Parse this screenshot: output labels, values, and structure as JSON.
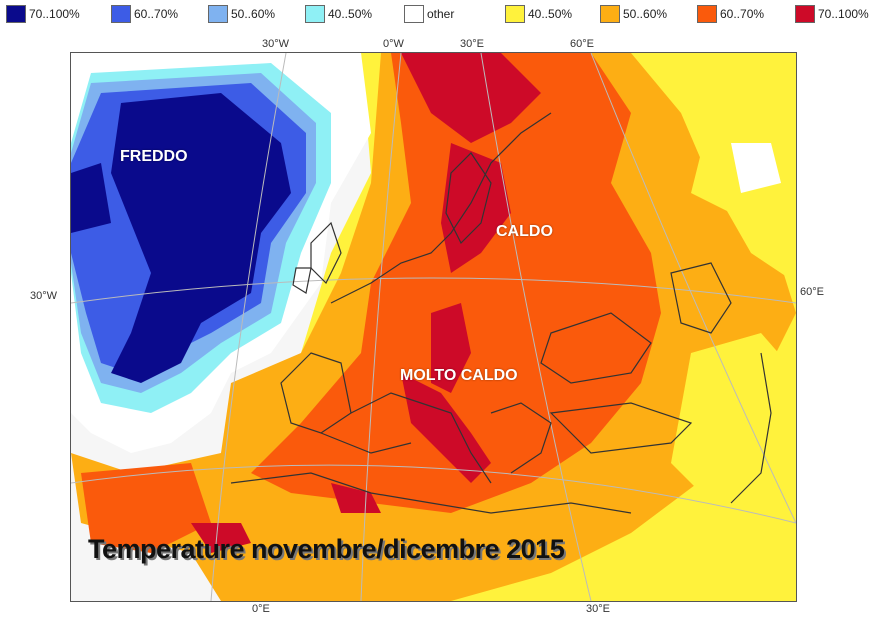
{
  "legend": {
    "items": [
      {
        "label": "70..100%",
        "color": "#0a0a8c"
      },
      {
        "label": "60..70%",
        "color": "#3d5ce6"
      },
      {
        "label": "50..60%",
        "color": "#7fb2f0"
      },
      {
        "label": "40..50%",
        "color": "#8ff0f5"
      },
      {
        "label": "other",
        "color": "#ffffff"
      },
      {
        "label": "40..50%",
        "color": "#fff23c"
      },
      {
        "label": "50..60%",
        "color": "#fdae14"
      },
      {
        "label": "60..70%",
        "color": "#fa5a0c"
      },
      {
        "label": "70..100%",
        "color": "#cd0a28"
      }
    ]
  },
  "coords": {
    "top": [
      "30°W",
      "0°W",
      "30°E",
      "60°E"
    ],
    "left": "30°W",
    "right": "60°E",
    "bottom": [
      "0°E",
      "30°E"
    ]
  },
  "labels": {
    "cold": "FREDDO",
    "warm": "CALDO",
    "very_warm": "MOLTO CALDO"
  },
  "title": "Temperature novembre/dicembre 2015"
}
